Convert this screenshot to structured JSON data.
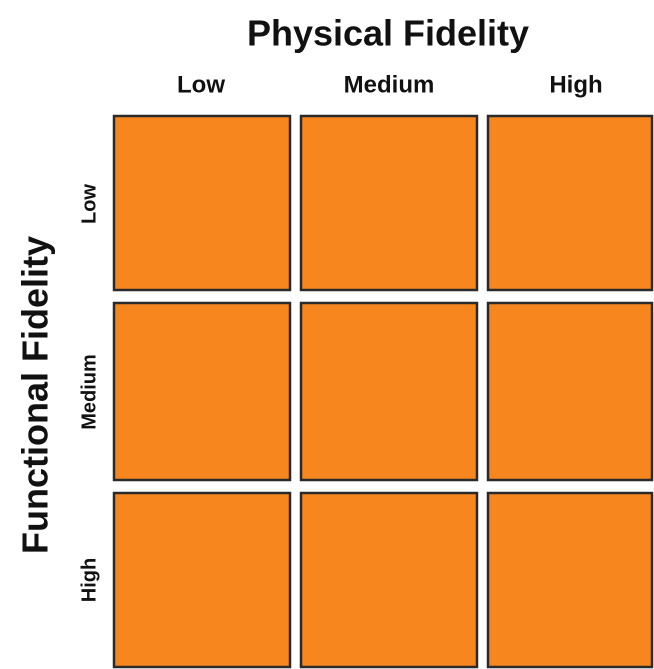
{
  "column_axis": {
    "title": "Physical Fidelity",
    "labels": [
      "Low",
      "Medium",
      "High"
    ]
  },
  "row_axis": {
    "title": "Functional Fidelity",
    "labels": [
      "Low",
      "Medium",
      "High"
    ]
  }
}
